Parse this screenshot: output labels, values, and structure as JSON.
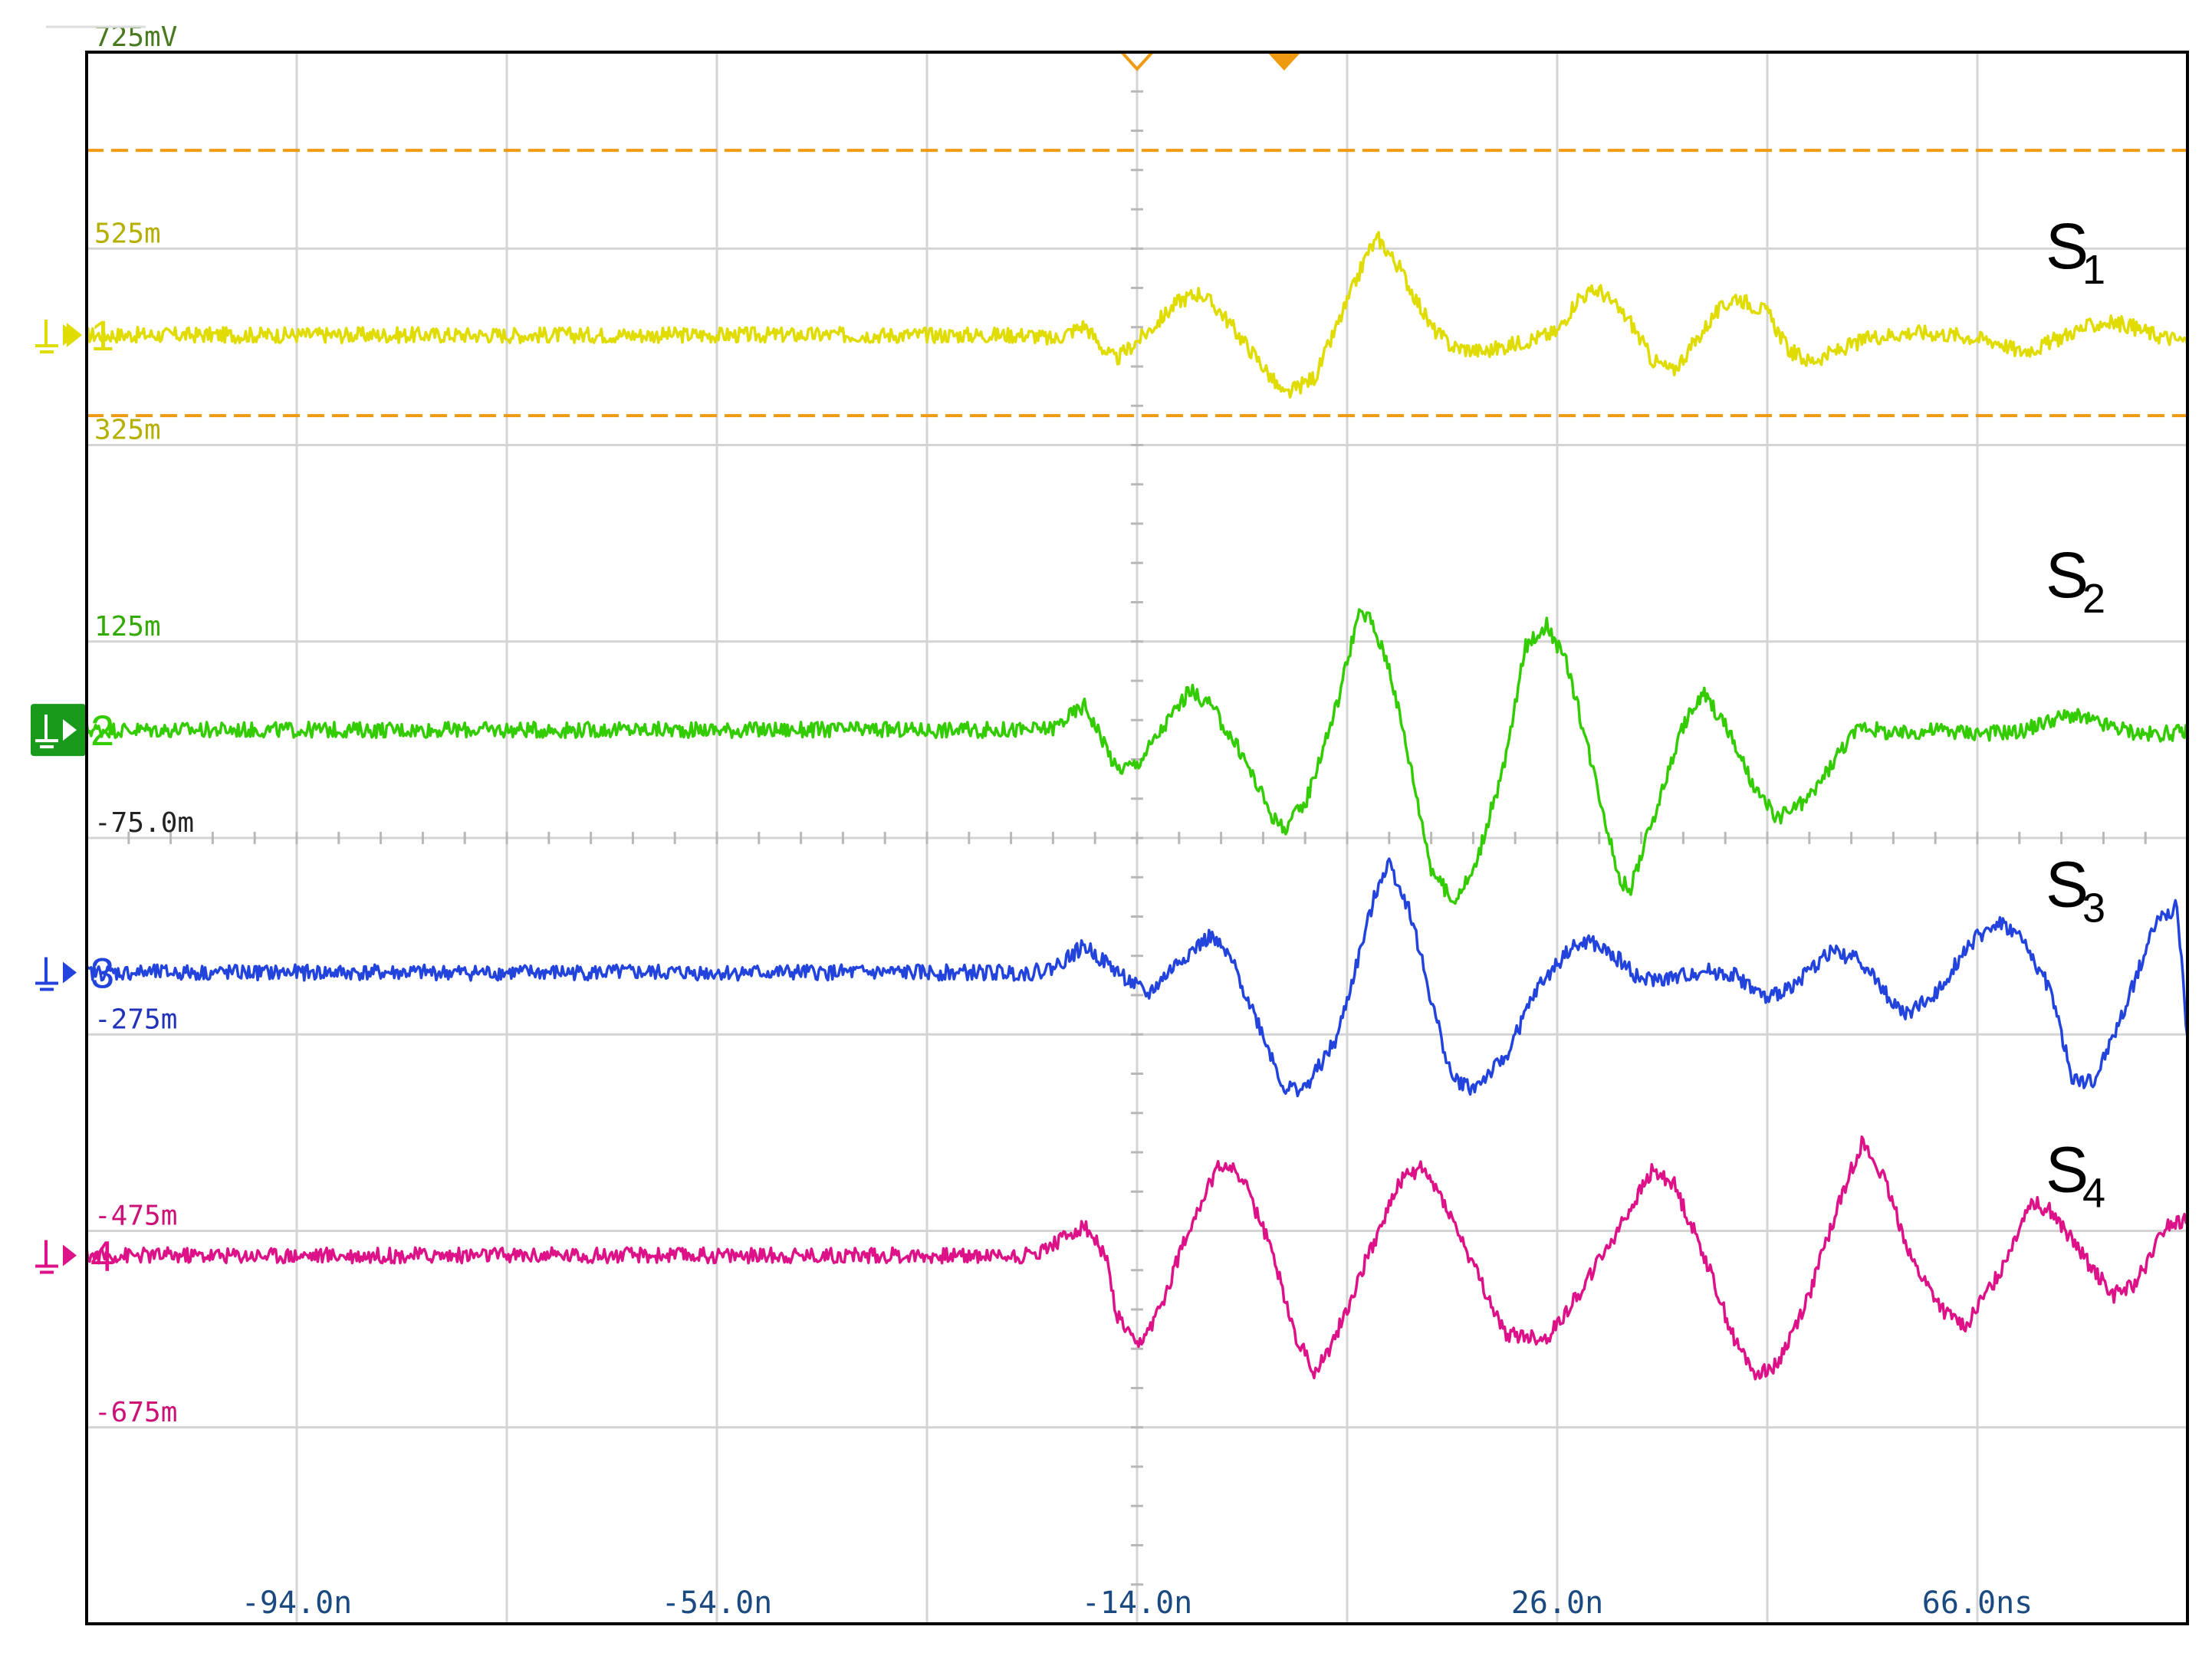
{
  "chart_data": {
    "type": "line",
    "title": "",
    "xlabel": "",
    "ylabel": "",
    "x_tick_labels": [
      "-94.0n",
      "-54.0n",
      "-14.0n",
      "26.0n",
      "66.0ns"
    ],
    "x_ticks": [
      -94,
      -54,
      -14,
      26,
      66
    ],
    "xlim": [
      -114,
      86
    ],
    "x_unit": "ns",
    "y_tick_labels": [
      "725mV",
      "525m",
      "325m",
      "125m",
      "-75.0m",
      "-275m",
      "-475m",
      "-675m"
    ],
    "y_ticks": [
      725,
      525,
      325,
      125,
      -75,
      -275,
      -475,
      -675
    ],
    "ylim": [
      -875,
      725
    ],
    "y_unit": "mV",
    "grid": true,
    "threshold_lines": [
      625,
      355
    ],
    "series": [
      {
        "name": "S1",
        "color": "#e0dc00",
        "channel": "1",
        "baseline": 437,
        "points": [
          [
            -114,
            437
          ],
          [
            -24,
            437
          ],
          [
            -22,
            432
          ],
          [
            -19,
            447
          ],
          [
            -17,
            420
          ],
          [
            -16,
            412
          ],
          [
            -13,
            440
          ],
          [
            -10,
            472
          ],
          [
            -8,
            480
          ],
          [
            -6,
            460
          ],
          [
            -2,
            405
          ],
          [
            0,
            375
          ],
          [
            3,
            395
          ],
          [
            6,
            470
          ],
          [
            8,
            522
          ],
          [
            9,
            535
          ],
          [
            11,
            505
          ],
          [
            14,
            445
          ],
          [
            16,
            425
          ],
          [
            19,
            420
          ],
          [
            22,
            428
          ],
          [
            26,
            440
          ],
          [
            28,
            475
          ],
          [
            30,
            483
          ],
          [
            33,
            450
          ],
          [
            35,
            412
          ],
          [
            37,
            400
          ],
          [
            39,
            428
          ],
          [
            41,
            458
          ],
          [
            43,
            476
          ],
          [
            46,
            460
          ],
          [
            48,
            422
          ],
          [
            50,
            410
          ],
          [
            52,
            418
          ],
          [
            56,
            435
          ],
          [
            60,
            440
          ],
          [
            64,
            437
          ],
          [
            68,
            430
          ],
          [
            70,
            420
          ],
          [
            72,
            425
          ],
          [
            75,
            440
          ],
          [
            78,
            450
          ],
          [
            80,
            448
          ],
          [
            83,
            437
          ],
          [
            86,
            430
          ]
        ]
      },
      {
        "name": "S2",
        "color": "#33cc00",
        "channel": "2",
        "baseline": 35,
        "points": [
          [
            -114,
            35
          ],
          [
            -24,
            35
          ],
          [
            -22,
            37
          ],
          [
            -19,
            60
          ],
          [
            -17,
            20
          ],
          [
            -16,
            -5
          ],
          [
            -14,
            0
          ],
          [
            -11,
            45
          ],
          [
            -9,
            75
          ],
          [
            -7,
            60
          ],
          [
            -4,
            10
          ],
          [
            -1,
            -55
          ],
          [
            0,
            -65
          ],
          [
            2,
            -40
          ],
          [
            5,
            60
          ],
          [
            7,
            150
          ],
          [
            8,
            152
          ],
          [
            10,
            100
          ],
          [
            12,
            0
          ],
          [
            14,
            -105
          ],
          [
            16,
            -140
          ],
          [
            18,
            -110
          ],
          [
            21,
            0
          ],
          [
            23,
            120
          ],
          [
            25,
            143
          ],
          [
            27,
            100
          ],
          [
            30,
            -30
          ],
          [
            32,
            -120
          ],
          [
            33,
            -125
          ],
          [
            35,
            -60
          ],
          [
            38,
            40
          ],
          [
            40,
            72
          ],
          [
            42,
            40
          ],
          [
            45,
            -30
          ],
          [
            47,
            -55
          ],
          [
            50,
            -35
          ],
          [
            53,
            15
          ],
          [
            55,
            40
          ],
          [
            58,
            30
          ],
          [
            62,
            35
          ],
          [
            66,
            32
          ],
          [
            70,
            33
          ],
          [
            73,
            45
          ],
          [
            75,
            50
          ],
          [
            78,
            40
          ],
          [
            82,
            30
          ],
          [
            86,
            33
          ]
        ]
      },
      {
        "name": "S3",
        "color": "#2244dd",
        "channel": "3",
        "baseline": -212,
        "points": [
          [
            -114,
            -212
          ],
          [
            -24,
            -212
          ],
          [
            -22,
            -207
          ],
          [
            -19,
            -185
          ],
          [
            -16,
            -210
          ],
          [
            -13,
            -235
          ],
          [
            -10,
            -200
          ],
          [
            -7,
            -175
          ],
          [
            -5,
            -200
          ],
          [
            -2,
            -275
          ],
          [
            0,
            -330
          ],
          [
            2,
            -330
          ],
          [
            5,
            -280
          ],
          [
            7,
            -200
          ],
          [
            9,
            -120
          ],
          [
            10,
            -100
          ],
          [
            12,
            -150
          ],
          [
            14,
            -240
          ],
          [
            16,
            -320
          ],
          [
            18,
            -330
          ],
          [
            21,
            -300
          ],
          [
            24,
            -230
          ],
          [
            27,
            -190
          ],
          [
            29,
            -180
          ],
          [
            32,
            -200
          ],
          [
            34,
            -220
          ],
          [
            37,
            -218
          ],
          [
            40,
            -210
          ],
          [
            43,
            -215
          ],
          [
            46,
            -240
          ],
          [
            49,
            -220
          ],
          [
            52,
            -190
          ],
          [
            55,
            -200
          ],
          [
            57,
            -230
          ],
          [
            59,
            -255
          ],
          [
            62,
            -235
          ],
          [
            65,
            -185
          ],
          [
            68,
            -160
          ],
          [
            70,
            -175
          ],
          [
            73,
            -230
          ],
          [
            75,
            -320
          ],
          [
            77,
            -325
          ],
          [
            80,
            -250
          ],
          [
            83,
            -160
          ],
          [
            85,
            -145
          ],
          [
            86,
            -280
          ]
        ]
      },
      {
        "name": "S4",
        "color": "#dd1188",
        "channel": "4",
        "baseline": -500,
        "points": [
          [
            -114,
            -500
          ],
          [
            -24,
            -500
          ],
          [
            -22,
            -488
          ],
          [
            -19,
            -470
          ],
          [
            -17,
            -500
          ],
          [
            -16,
            -560
          ],
          [
            -14,
            -595
          ],
          [
            -12,
            -560
          ],
          [
            -9,
            -470
          ],
          [
            -6,
            -405
          ],
          [
            -4,
            -420
          ],
          [
            -1,
            -500
          ],
          [
            1,
            -580
          ],
          [
            3,
            -620
          ],
          [
            5,
            -580
          ],
          [
            8,
            -500
          ],
          [
            11,
            -425
          ],
          [
            13,
            -410
          ],
          [
            15,
            -440
          ],
          [
            18,
            -510
          ],
          [
            21,
            -580
          ],
          [
            25,
            -585
          ],
          [
            28,
            -540
          ],
          [
            32,
            -470
          ],
          [
            35,
            -415
          ],
          [
            37,
            -425
          ],
          [
            40,
            -500
          ],
          [
            43,
            -590
          ],
          [
            45,
            -620
          ],
          [
            47,
            -610
          ],
          [
            50,
            -540
          ],
          [
            53,
            -440
          ],
          [
            55,
            -385
          ],
          [
            57,
            -420
          ],
          [
            60,
            -510
          ],
          [
            63,
            -560
          ],
          [
            65,
            -570
          ],
          [
            68,
            -520
          ],
          [
            71,
            -445
          ],
          [
            73,
            -455
          ],
          [
            76,
            -500
          ],
          [
            79,
            -540
          ],
          [
            81,
            -530
          ],
          [
            84,
            -470
          ],
          [
            86,
            -465
          ]
        ]
      }
    ],
    "annotations": [
      {
        "text": "S",
        "sub": "1",
        "series": "S1"
      },
      {
        "text": "S",
        "sub": "2",
        "series": "S2"
      },
      {
        "text": "S",
        "sub": "3",
        "series": "S3"
      },
      {
        "text": "S",
        "sub": "4",
        "series": "S4"
      }
    ]
  },
  "colors": {
    "grid": "#d4d4d4",
    "threshold": "#ef9a10",
    "trigger_marker": "#ef9a10",
    "frame": "#000000"
  },
  "icons": [
    "trigger-marker-open-icon",
    "trigger-marker-filled-icon",
    "ground-icon"
  ]
}
